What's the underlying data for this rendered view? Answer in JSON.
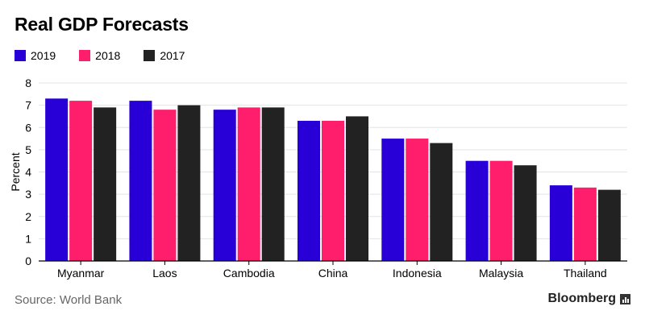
{
  "colors": {
    "s2019": "#2800d7",
    "s2018": "#ff1e6b",
    "s2017": "#222222",
    "axis": "#000000",
    "grid": "#e3e3e3",
    "muted": "#666666"
  },
  "footer": {
    "source": "Source: World Bank",
    "brand": "Bloomberg"
  },
  "chart_data": {
    "type": "bar",
    "title": "Real GDP Forecasts",
    "xlabel": "",
    "ylabel": "Percent",
    "ylim": [
      0,
      8
    ],
    "yticks": [
      "0",
      "1",
      "2",
      "3",
      "4",
      "5",
      "6",
      "7",
      "8"
    ],
    "grid": true,
    "legend_position": "top-left",
    "categories": [
      "Myanmar",
      "Laos",
      "Cambodia",
      "China",
      "Indonesia",
      "Malaysia",
      "Thailand"
    ],
    "series": [
      {
        "name": "2019",
        "color": "#2800d7",
        "values": [
          7.3,
          7.2,
          6.8,
          6.3,
          5.5,
          4.5,
          3.4
        ]
      },
      {
        "name": "2018",
        "color": "#ff1e6b",
        "values": [
          7.2,
          6.8,
          6.9,
          6.3,
          5.5,
          4.5,
          3.3
        ]
      },
      {
        "name": "2017",
        "color": "#222222",
        "values": [
          6.9,
          7.0,
          6.9,
          6.5,
          5.3,
          4.3,
          3.2
        ]
      }
    ]
  }
}
